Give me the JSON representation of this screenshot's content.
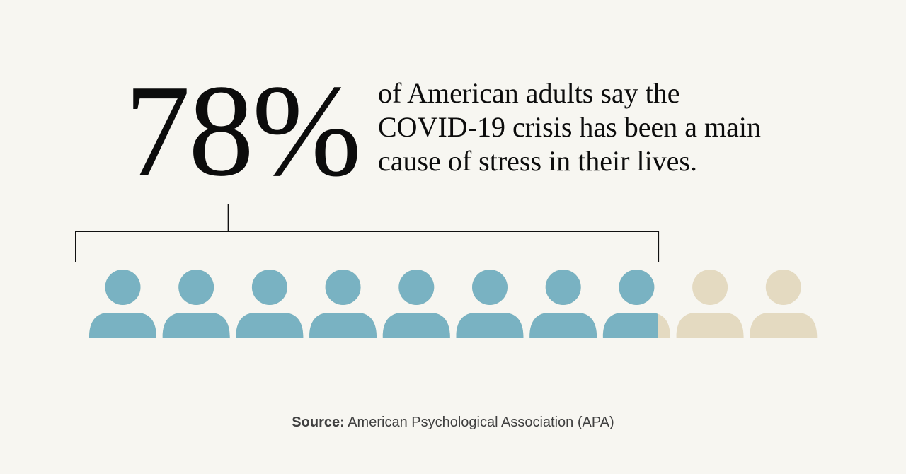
{
  "headline": {
    "percent": "78%",
    "statement_lines": [
      "of American adults say the",
      "COVID-19 crisis has been a main",
      "cause of stress in their lives."
    ]
  },
  "source": {
    "label": "Source:",
    "text": "American Psychological Association (APA)"
  },
  "chart_data": {
    "type": "pictograph",
    "unit": "person",
    "total_icons": 10,
    "value_percent": 78,
    "colors": {
      "highlight": "#79b2c2",
      "remainder": "#e4dac1",
      "bracket": "#111111"
    }
  }
}
